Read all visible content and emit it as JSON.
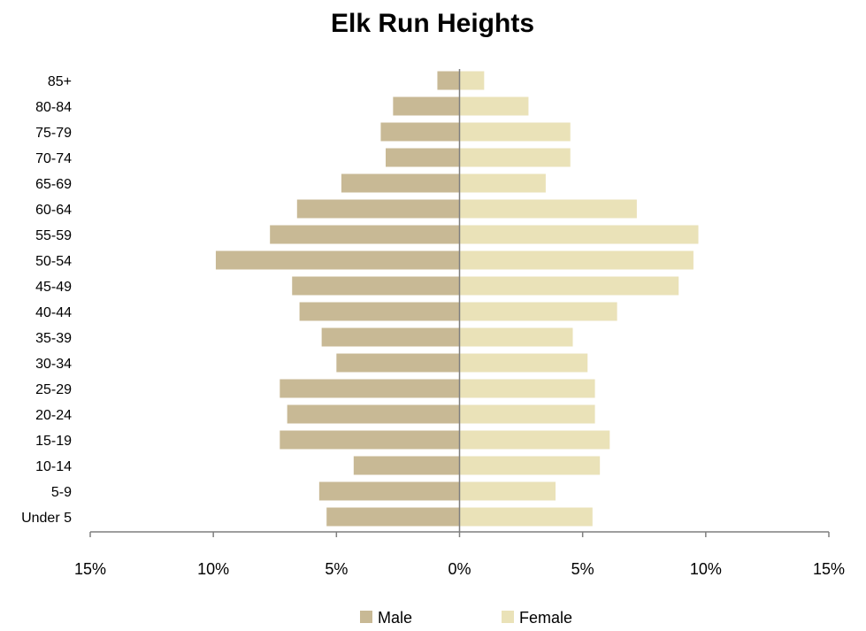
{
  "chart_data": {
    "type": "bar",
    "orientation": "horizontal",
    "title": "Elk Run Heights",
    "categories": [
      "85+",
      "80-84",
      "75-79",
      "70-74",
      "65-69",
      "60-64",
      "55-59",
      "50-54",
      "45-49",
      "40-44",
      "35-39",
      "30-34",
      "25-29",
      "20-24",
      "15-19",
      "10-14",
      "5-9",
      "Under 5"
    ],
    "series": [
      {
        "name": "Male",
        "color": "#C8B995",
        "values": [
          0.9,
          2.7,
          3.2,
          3.0,
          4.8,
          6.6,
          7.7,
          9.9,
          6.8,
          6.5,
          5.6,
          5.0,
          7.3,
          7.0,
          7.3,
          4.3,
          5.7,
          5.4
        ]
      },
      {
        "name": "Female",
        "color": "#EAE2B8",
        "values": [
          1.0,
          2.8,
          4.5,
          4.5,
          3.5,
          7.2,
          9.7,
          9.5,
          8.9,
          6.4,
          4.6,
          5.2,
          5.5,
          5.5,
          6.1,
          5.7,
          3.9,
          5.4
        ]
      }
    ],
    "xlim": [
      -15,
      15
    ],
    "xticks": [
      -15,
      -10,
      -5,
      0,
      5,
      10,
      15
    ],
    "xtick_labels": [
      "15%",
      "10%",
      "5%",
      "0%",
      "5%",
      "10%",
      "15%"
    ],
    "xlabel": "",
    "ylabel": "",
    "grid": false,
    "legend_position": "bottom"
  }
}
